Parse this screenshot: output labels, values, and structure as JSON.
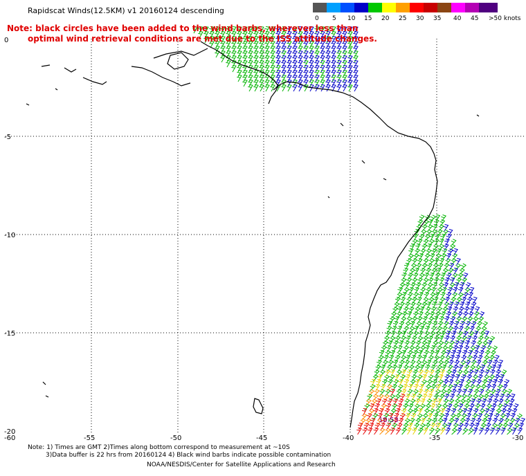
{
  "header": {
    "title": "Rapidscat Winds(12.5KM) v1 20160124 descending",
    "note_line1": "Note: black circles have been added to the wind barbs, wherever less than",
    "note_line2": "optimal wind retrieval conditions are met due to the ISS attitude changes."
  },
  "legend": {
    "unit_label": ">50 knots",
    "stops": [
      {
        "label": "0",
        "color": "#555555"
      },
      {
        "label": "5",
        "color": "#00a0ff"
      },
      {
        "label": "10",
        "color": "#0050ff"
      },
      {
        "label": "15",
        "color": "#0000c8"
      },
      {
        "label": "20",
        "color": "#00c800"
      },
      {
        "label": "25",
        "color": "#ffff00"
      },
      {
        "label": "30",
        "color": "#ffa000"
      },
      {
        "label": "35",
        "color": "#ff0000"
      },
      {
        "label": "40",
        "color": "#c80000"
      },
      {
        "label": "45",
        "color": "#8b4513"
      },
      {
        "label": "",
        "color": "#ff00ff"
      },
      {
        "label": "",
        "color": "#b400b4"
      },
      {
        "label": "",
        "color": "#500080"
      }
    ]
  },
  "map": {
    "lon_ticks": [
      "-60",
      "-55",
      "-50",
      "-45",
      "-40",
      "-35",
      "-30"
    ],
    "lat_ticks": [
      "0",
      "-5",
      "-10",
      "-15",
      "-20"
    ],
    "point_label": "10:53"
  },
  "footer": {
    "line1": "Note: 1) Times are GMT 2)Times along bottom correspond to measurement at ~10S",
    "line2": "3)Data buffer is 22 hrs from 20160124 4) Black wind barbs indicate possible contamination",
    "line3": "NOAA/NESDIS/Center for Satellite Applications and Research"
  },
  "colors": {
    "land_outline": "#000000",
    "grid": "#000000",
    "note_text": "#e00000",
    "barb_blue": "#0000c8",
    "barb_green": "#00b400",
    "barb_yellow": "#e6d200",
    "barb_orange": "#ff8c00",
    "barb_red": "#e60000"
  }
}
